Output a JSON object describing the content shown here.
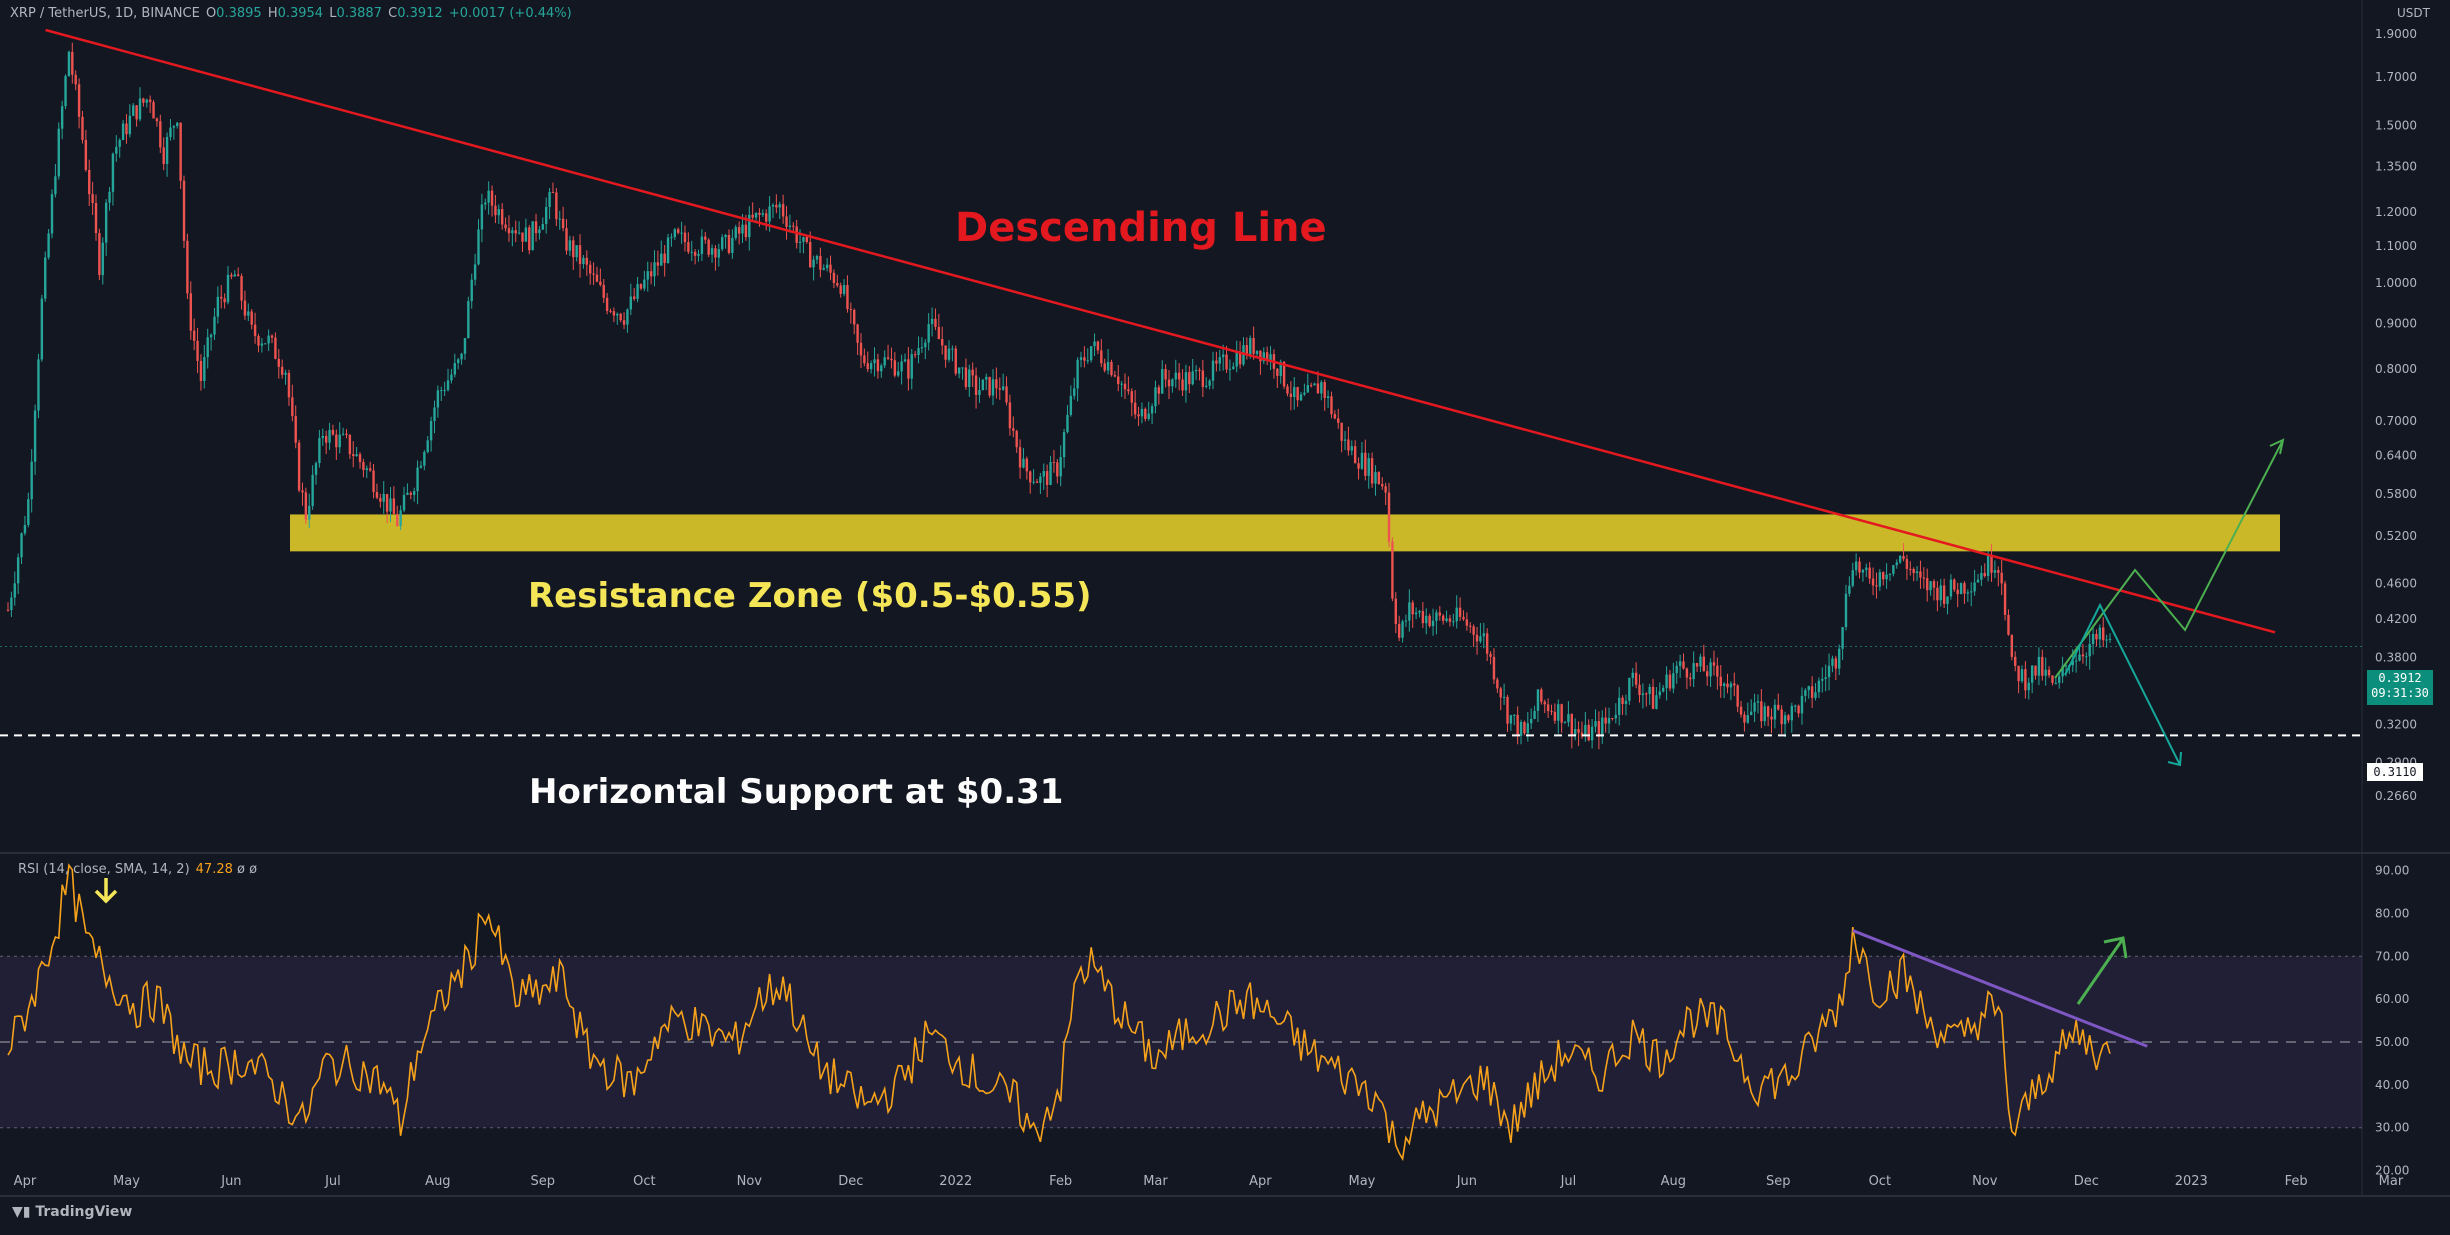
{
  "header": {
    "symbol": "XRP / TetherUS, 1D, BINANCE",
    "o_label": "O",
    "o": "0.3895",
    "h_label": "H",
    "h": "0.3954",
    "l_label": "L",
    "l": "0.3887",
    "c_label": "C",
    "c": "0.3912",
    "change": "+0.0017 (+0.44%)"
  },
  "unit": "USDT",
  "rsi_header": {
    "label": "RSI (14, close, SMA, 14, 2)",
    "value": "47.28",
    "extra": "ø ø"
  },
  "annotations": {
    "descending": "Descending Line",
    "resistance": "Resistance Zone ($0.5-$0.55)",
    "support": "Horizontal Support at $0.31"
  },
  "price_tag": {
    "value": "0.3912",
    "time": "09:31:30"
  },
  "support_tag": "0.3110",
  "logo": "TradingView",
  "colors": {
    "bg": "#131722",
    "up": "#26a69a",
    "down": "#ef5350",
    "trend": "#e3191f",
    "zone": "#d4c12a",
    "rsi": "#f7a21b",
    "rsi_trend": "#7e57c2",
    "arrow_green": "#4caf50",
    "arrow_teal": "#14a89a"
  },
  "chart_data": [
    {
      "type": "candlestick",
      "title": "XRP / TetherUS, 1D, BINANCE",
      "scale": "log",
      "ylim": [
        0.25,
        2.0
      ],
      "y_ticks": [
        "1.9000",
        "1.7000",
        "1.5000",
        "1.3500",
        "1.2000",
        "1.1000",
        "1.0000",
        "0.9000",
        "0.8000",
        "0.7000",
        "0.6400",
        "0.5800",
        "0.5200",
        "0.4600",
        "0.4200",
        "0.3800",
        "0.3500",
        "0.3200",
        "0.2900",
        "0.2660"
      ],
      "x_ticks": [
        "Apr",
        "May",
        "Jun",
        "Jul",
        "Aug",
        "Sep",
        "Oct",
        "Nov",
        "Dec",
        "2022",
        "Feb",
        "Mar",
        "Apr",
        "May",
        "Jun",
        "Jul",
        "Aug",
        "Sep",
        "Oct",
        "Nov",
        "Dec",
        "2023",
        "Feb",
        "Mar"
      ],
      "date_range": [
        "2021-03-27",
        "2022-12-08"
      ],
      "close_path": [
        [
          "2021-03-27",
          0.43
        ],
        [
          "2021-04-02",
          0.57
        ],
        [
          "2021-04-06",
          0.95
        ],
        [
          "2021-04-10",
          1.35
        ],
        [
          "2021-04-14",
          1.82
        ],
        [
          "2021-04-18",
          1.45
        ],
        [
          "2021-04-23",
          1.05
        ],
        [
          "2021-04-27",
          1.4
        ],
        [
          "2021-05-03",
          1.55
        ],
        [
          "2021-05-08",
          1.62
        ],
        [
          "2021-05-12",
          1.4
        ],
        [
          "2021-05-16",
          1.55
        ],
        [
          "2021-05-19",
          0.95
        ],
        [
          "2021-05-23",
          0.78
        ],
        [
          "2021-05-28",
          0.95
        ],
        [
          "2021-06-02",
          1.02
        ],
        [
          "2021-06-07",
          0.88
        ],
        [
          "2021-06-12",
          0.86
        ],
        [
          "2021-06-17",
          0.8
        ],
        [
          "2021-06-21",
          0.6
        ],
        [
          "2021-06-23",
          0.55
        ],
        [
          "2021-06-28",
          0.68
        ],
        [
          "2021-07-05",
          0.66
        ],
        [
          "2021-07-12",
          0.61
        ],
        [
          "2021-07-20",
          0.54
        ],
        [
          "2021-07-25",
          0.6
        ],
        [
          "2021-08-01",
          0.75
        ],
        [
          "2021-08-08",
          0.82
        ],
        [
          "2021-08-12",
          1.08
        ],
        [
          "2021-08-15",
          1.25
        ],
        [
          "2021-08-21",
          1.18
        ],
        [
          "2021-08-28",
          1.12
        ],
        [
          "2021-09-04",
          1.25
        ],
        [
          "2021-09-07",
          1.12
        ],
        [
          "2021-09-13",
          1.05
        ],
        [
          "2021-09-20",
          0.95
        ],
        [
          "2021-09-25",
          0.92
        ],
        [
          "2021-10-01",
          1.0
        ],
        [
          "2021-10-10",
          1.12
        ],
        [
          "2021-10-18",
          1.1
        ],
        [
          "2021-10-25",
          1.1
        ],
        [
          "2021-11-03",
          1.18
        ],
        [
          "2021-11-10",
          1.22
        ],
        [
          "2021-11-18",
          1.08
        ],
        [
          "2021-11-28",
          1.0
        ],
        [
          "2021-12-04",
          0.82
        ],
        [
          "2021-12-10",
          0.82
        ],
        [
          "2021-12-18",
          0.8
        ],
        [
          "2021-12-24",
          0.9
        ],
        [
          "2021-12-30",
          0.83
        ],
        [
          "2022-01-07",
          0.76
        ],
        [
          "2022-01-14",
          0.77
        ],
        [
          "2022-01-21",
          0.62
        ],
        [
          "2022-01-26",
          0.6
        ],
        [
          "2022-01-31",
          0.62
        ],
        [
          "2022-02-06",
          0.8
        ],
        [
          "2022-02-10",
          0.85
        ],
        [
          "2022-02-17",
          0.8
        ],
        [
          "2022-02-24",
          0.7
        ],
        [
          "2022-03-03",
          0.78
        ],
        [
          "2022-03-10",
          0.78
        ],
        [
          "2022-03-17",
          0.79
        ],
        [
          "2022-03-25",
          0.83
        ],
        [
          "2022-03-30",
          0.85
        ],
        [
          "2022-04-05",
          0.82
        ],
        [
          "2022-04-12",
          0.73
        ],
        [
          "2022-04-19",
          0.77
        ],
        [
          "2022-04-26",
          0.66
        ],
        [
          "2022-05-03",
          0.62
        ],
        [
          "2022-05-08",
          0.59
        ],
        [
          "2022-05-10",
          0.45
        ],
        [
          "2022-05-12",
          0.4
        ],
        [
          "2022-05-15",
          0.43
        ],
        [
          "2022-05-22",
          0.42
        ],
        [
          "2022-05-30",
          0.42
        ],
        [
          "2022-06-06",
          0.4
        ],
        [
          "2022-06-13",
          0.33
        ],
        [
          "2022-06-18",
          0.31
        ],
        [
          "2022-06-22",
          0.34
        ],
        [
          "2022-06-29",
          0.33
        ],
        [
          "2022-07-05",
          0.31
        ],
        [
          "2022-07-12",
          0.32
        ],
        [
          "2022-07-20",
          0.36
        ],
        [
          "2022-07-26",
          0.34
        ],
        [
          "2022-08-02",
          0.37
        ],
        [
          "2022-08-09",
          0.37
        ],
        [
          "2022-08-16",
          0.36
        ],
        [
          "2022-08-22",
          0.33
        ],
        [
          "2022-08-29",
          0.33
        ],
        [
          "2022-09-05",
          0.33
        ],
        [
          "2022-09-12",
          0.35
        ],
        [
          "2022-09-18",
          0.38
        ],
        [
          "2022-09-23",
          0.49
        ],
        [
          "2022-09-28",
          0.46
        ],
        [
          "2022-10-03",
          0.48
        ],
        [
          "2022-10-08",
          0.49
        ],
        [
          "2022-10-13",
          0.46
        ],
        [
          "2022-10-20",
          0.45
        ],
        [
          "2022-10-27",
          0.46
        ],
        [
          "2022-11-04",
          0.49
        ],
        [
          "2022-11-06",
          0.47
        ],
        [
          "2022-11-09",
          0.37
        ],
        [
          "2022-11-13",
          0.36
        ],
        [
          "2022-11-17",
          0.37
        ],
        [
          "2022-11-22",
          0.35
        ],
        [
          "2022-11-26",
          0.38
        ],
        [
          "2022-12-01",
          0.39
        ],
        [
          "2022-12-05",
          0.4
        ],
        [
          "2022-12-08",
          0.3912
        ]
      ],
      "resistance_zone": [
        0.5,
        0.55
      ],
      "horizontal_support": 0.311,
      "descending_line": [
        [
          "2021-04-13",
          1.91
        ],
        [
          "2022-12-20",
          0.41
        ]
      ]
    },
    {
      "type": "line",
      "title": "RSI (14, close, SMA, 14, 2)",
      "ylim": [
        15,
        92
      ],
      "y_ticks": [
        "90.00",
        "80.00",
        "70.00",
        "60.00",
        "50.00",
        "40.00",
        "30.00",
        "20.00"
      ],
      "bands": [
        30,
        50,
        70
      ],
      "last_value": 47.28,
      "path": [
        [
          "2021-03-27",
          48
        ],
        [
          "2021-04-03",
          60
        ],
        [
          "2021-04-10",
          76
        ],
        [
          "2021-04-14",
          88
        ],
        [
          "2021-04-20",
          72
        ],
        [
          "2021-04-27",
          64
        ],
        [
          "2021-05-04",
          58
        ],
        [
          "2021-05-10",
          60
        ],
        [
          "2021-05-19",
          45
        ],
        [
          "2021-05-28",
          44
        ],
        [
          "2021-06-05",
          46
        ],
        [
          "2021-06-14",
          40
        ],
        [
          "2021-06-22",
          31
        ],
        [
          "2021-06-29",
          45
        ],
        [
          "2021-07-08",
          44
        ],
        [
          "2021-07-16",
          40
        ],
        [
          "2021-07-21",
          31
        ],
        [
          "2021-07-26",
          48
        ],
        [
          "2021-08-04",
          62
        ],
        [
          "2021-08-11",
          70
        ],
        [
          "2021-08-15",
          82
        ],
        [
          "2021-08-24",
          60
        ],
        [
          "2021-09-01",
          62
        ],
        [
          "2021-09-07",
          65
        ],
        [
          "2021-09-14",
          48
        ],
        [
          "2021-09-21",
          43
        ],
        [
          "2021-09-28",
          40
        ],
        [
          "2021-10-05",
          52
        ],
        [
          "2021-10-12",
          56
        ],
        [
          "2021-10-20",
          52
        ],
        [
          "2021-10-28",
          50
        ],
        [
          "2021-11-04",
          60
        ],
        [
          "2021-11-11",
          64
        ],
        [
          "2021-11-20",
          46
        ],
        [
          "2021-11-28",
          40
        ],
        [
          "2021-12-06",
          35
        ],
        [
          "2021-12-15",
          40
        ],
        [
          "2021-12-24",
          52
        ],
        [
          "2021-12-31",
          47
        ],
        [
          "2022-01-10",
          40
        ],
        [
          "2022-01-19",
          36
        ],
        [
          "2022-01-24",
          28
        ],
        [
          "2022-02-01",
          40
        ],
        [
          "2022-02-06",
          66
        ],
        [
          "2022-02-10",
          68
        ],
        [
          "2022-02-20",
          55
        ],
        [
          "2022-03-01",
          46
        ],
        [
          "2022-03-10",
          52
        ],
        [
          "2022-03-20",
          56
        ],
        [
          "2022-03-28",
          60
        ],
        [
          "2022-04-06",
          55
        ],
        [
          "2022-04-15",
          48
        ],
        [
          "2022-04-26",
          42
        ],
        [
          "2022-05-05",
          38
        ],
        [
          "2022-05-11",
          26
        ],
        [
          "2022-05-20",
          33
        ],
        [
          "2022-05-30",
          38
        ],
        [
          "2022-06-06",
          42
        ],
        [
          "2022-06-14",
          30
        ],
        [
          "2022-06-20",
          38
        ],
        [
          "2022-06-30",
          48
        ],
        [
          "2022-07-10",
          42
        ],
        [
          "2022-07-20",
          52
        ],
        [
          "2022-07-28",
          46
        ],
        [
          "2022-08-06",
          56
        ],
        [
          "2022-08-15",
          54
        ],
        [
          "2022-08-25",
          40
        ],
        [
          "2022-09-05",
          42
        ],
        [
          "2022-09-13",
          52
        ],
        [
          "2022-09-20",
          60
        ],
        [
          "2022-09-23",
          76
        ],
        [
          "2022-09-30",
          62
        ],
        [
          "2022-10-08",
          66
        ],
        [
          "2022-10-15",
          55
        ],
        [
          "2022-10-24",
          50
        ],
        [
          "2022-11-02",
          58
        ],
        [
          "2022-11-06",
          54
        ],
        [
          "2022-11-09",
          28
        ],
        [
          "2022-11-14",
          36
        ],
        [
          "2022-11-20",
          44
        ],
        [
          "2022-11-28",
          52
        ],
        [
          "2022-12-04",
          48
        ],
        [
          "2022-12-08",
          47.28
        ]
      ],
      "divergence_line": [
        [
          "2022-09-23",
          76
        ],
        [
          "2022-12-19",
          49
        ]
      ]
    }
  ]
}
